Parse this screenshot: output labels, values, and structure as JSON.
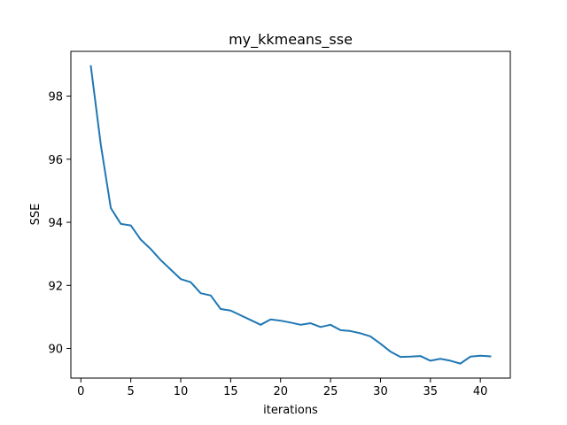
{
  "chart_data": {
    "type": "line",
    "title": "my_kkmeans_sse",
    "xlabel": "iterations",
    "ylabel": "SSE",
    "xlim": [
      -1.0,
      43.0
    ],
    "ylim": [
      89.06,
      99.42
    ],
    "xticks": [
      0,
      5,
      10,
      15,
      20,
      25,
      30,
      35,
      40
    ],
    "yticks": [
      90,
      92,
      94,
      96,
      98
    ],
    "grid": false,
    "legend": "none",
    "colors": {
      "line": "#1f77b4",
      "axes": "#000000",
      "background": "#ffffff"
    },
    "series": [
      {
        "x": [
          1,
          2,
          3,
          4,
          5,
          6,
          7,
          8,
          9,
          10,
          11,
          12,
          13,
          14,
          15,
          16,
          17,
          18,
          19,
          20,
          21,
          22,
          23,
          24,
          25,
          26,
          27,
          28,
          29,
          30,
          31,
          32,
          33,
          34,
          35,
          36,
          37,
          38,
          39,
          40,
          41
        ],
        "y": [
          98.95,
          96.45,
          94.45,
          93.95,
          93.9,
          93.45,
          93.15,
          92.8,
          92.5,
          92.2,
          92.1,
          91.75,
          91.68,
          91.25,
          91.2,
          91.05,
          90.9,
          90.75,
          90.92,
          90.88,
          90.82,
          90.75,
          90.8,
          90.68,
          90.75,
          90.58,
          90.55,
          90.48,
          90.38,
          90.15,
          89.9,
          89.73,
          89.74,
          89.76,
          89.61,
          89.67,
          89.61,
          89.52,
          89.74,
          89.77,
          89.75
        ]
      }
    ]
  }
}
